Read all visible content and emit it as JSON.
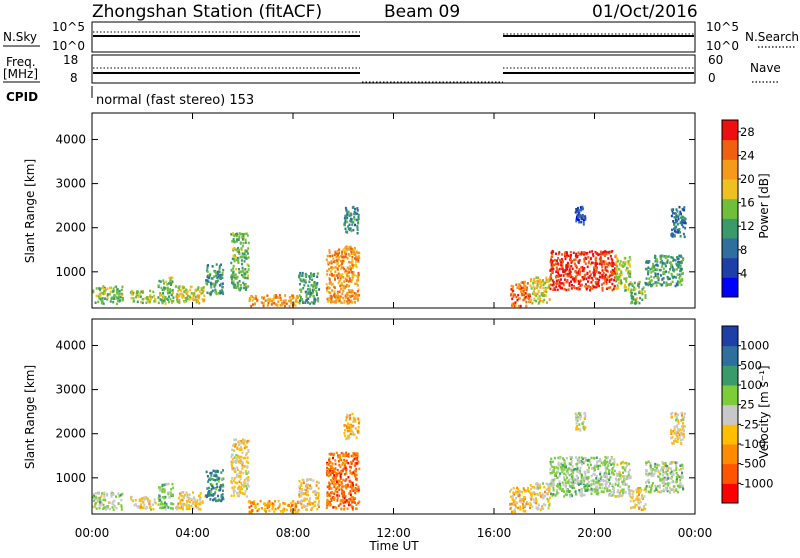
{
  "header": {
    "title": "Zhongshan Station (fitACF)",
    "beam": "Beam 09",
    "date": "01/Oct/2016"
  },
  "timeseries": {
    "nsky_label": "N.Sky",
    "nsearch_label": "N.Search",
    "nsky_ticks": [
      "10^5",
      "10^0"
    ],
    "freq_label": "Freq.",
    "freq_unit": "[MHz]",
    "freq_ticks": [
      "18",
      "8"
    ],
    "nave_label": "Nave",
    "nave_ticks": [
      "60",
      "0"
    ],
    "cpid_label": "CPID",
    "cpid_text": "normal (fast stereo) 153"
  },
  "colors": {
    "power_scale": [
      "#0000ff",
      "#1f3fa8",
      "#2e6f9e",
      "#3a9a6a",
      "#6fbf3a",
      "#f0c020",
      "#f59a1a",
      "#f06010",
      "#ee1010"
    ],
    "velocity_scale": [
      "#ff0000",
      "#ff5500",
      "#ff8c00",
      "#ffbf00",
      "#c8c8c8",
      "#7ccd3a",
      "#3a9a6a",
      "#2e6f9e",
      "#1f3fa8"
    ]
  },
  "chart_data": [
    {
      "type": "heatmap",
      "name": "power",
      "ylabel": "Slant Range [km]",
      "xlabel": "Time UT",
      "x_ticks": [
        "00:00",
        "04:00",
        "08:00",
        "12:00",
        "16:00",
        "20:00",
        "00:00"
      ],
      "y_ticks": [
        "1000",
        "2000",
        "3000",
        "4000"
      ],
      "ylim": [
        180,
        4600
      ],
      "xlim_hours": [
        0,
        24
      ],
      "colorbar_label": "Power [dB]",
      "colorbar_ticks": [
        "4",
        "8",
        "12",
        "16",
        "20",
        "24",
        "28"
      ],
      "clim": [
        0,
        30
      ],
      "regions": [
        {
          "t": [
            0,
            1.2
          ],
          "r": [
            300,
            700
          ],
          "v": 14
        },
        {
          "t": [
            1.5,
            2.5
          ],
          "r": [
            300,
            600
          ],
          "v": 16
        },
        {
          "t": [
            2.6,
            3.2
          ],
          "r": [
            300,
            900
          ],
          "v": 14
        },
        {
          "t": [
            3.3,
            4.5
          ],
          "r": [
            300,
            700
          ],
          "v": 18
        },
        {
          "t": [
            4.5,
            5.2
          ],
          "r": [
            500,
            1200
          ],
          "v": 12
        },
        {
          "t": [
            5.5,
            6.2
          ],
          "r": [
            600,
            1900
          ],
          "v": 14
        },
        {
          "t": [
            6.2,
            8.2
          ],
          "r": [
            250,
            500
          ],
          "v": 22
        },
        {
          "t": [
            8.2,
            9.0
          ],
          "r": [
            300,
            1000
          ],
          "v": 12
        },
        {
          "t": [
            9.3,
            10.6
          ],
          "r": [
            300,
            1600
          ],
          "v": 22
        },
        {
          "t": [
            10.0,
            10.6
          ],
          "r": [
            1900,
            2500
          ],
          "v": 10
        },
        {
          "t": [
            16.6,
            17.4
          ],
          "r": [
            250,
            800
          ],
          "v": 24
        },
        {
          "t": [
            17.4,
            18.2
          ],
          "r": [
            300,
            900
          ],
          "v": 18
        },
        {
          "t": [
            18.2,
            20.8
          ],
          "r": [
            600,
            1500
          ],
          "v": 27
        },
        {
          "t": [
            20.8,
            21.4
          ],
          "r": [
            600,
            1400
          ],
          "v": 16
        },
        {
          "t": [
            21.4,
            22.0
          ],
          "r": [
            300,
            800
          ],
          "v": 14
        },
        {
          "t": [
            22.0,
            23.5
          ],
          "r": [
            700,
            1400
          ],
          "v": 12
        },
        {
          "t": [
            23.0,
            23.6
          ],
          "r": [
            1800,
            2500
          ],
          "v": 8
        },
        {
          "t": [
            19.2,
            19.6
          ],
          "r": [
            2100,
            2500
          ],
          "v": 6
        }
      ]
    },
    {
      "type": "heatmap",
      "name": "velocity",
      "ylabel": "Slant Range [km]",
      "xlabel": "Time UT",
      "x_ticks": [
        "00:00",
        "04:00",
        "08:00",
        "12:00",
        "16:00",
        "20:00",
        "00:00"
      ],
      "y_ticks": [
        "1000",
        "2000",
        "3000",
        "4000"
      ],
      "ylim": [
        180,
        4600
      ],
      "xlim_hours": [
        0,
        24
      ],
      "colorbar_label": "Velocity [m s⁻¹]",
      "colorbar_ticks": [
        "1000",
        "500",
        "100",
        "25",
        "-25",
        "-100",
        "-500",
        "-1000"
      ],
      "clim": [
        -1200,
        1200
      ],
      "regions": [
        {
          "t": [
            0,
            1.2
          ],
          "r": [
            300,
            700
          ],
          "v": 150
        },
        {
          "t": [
            1.5,
            2.5
          ],
          "r": [
            300,
            600
          ],
          "v": -150
        },
        {
          "t": [
            2.6,
            3.2
          ],
          "r": [
            300,
            900
          ],
          "v": 300
        },
        {
          "t": [
            3.3,
            4.5
          ],
          "r": [
            300,
            700
          ],
          "v": -200
        },
        {
          "t": [
            4.5,
            5.2
          ],
          "r": [
            500,
            1200
          ],
          "v": 600
        },
        {
          "t": [
            5.5,
            6.2
          ],
          "r": [
            600,
            1900
          ],
          "v": -150
        },
        {
          "t": [
            6.2,
            8.2
          ],
          "r": [
            250,
            500
          ],
          "v": -450
        },
        {
          "t": [
            8.2,
            9.0
          ],
          "r": [
            300,
            1000
          ],
          "v": -200
        },
        {
          "t": [
            9.3,
            10.6
          ],
          "r": [
            300,
            1600
          ],
          "v": -700
        },
        {
          "t": [
            10.0,
            10.6
          ],
          "r": [
            1900,
            2500
          ],
          "v": -300
        },
        {
          "t": [
            16.6,
            17.4
          ],
          "r": [
            250,
            800
          ],
          "v": -300
        },
        {
          "t": [
            17.4,
            18.2
          ],
          "r": [
            300,
            900
          ],
          "v": -150
        },
        {
          "t": [
            18.2,
            20.8
          ],
          "r": [
            600,
            1500
          ],
          "v": 200
        },
        {
          "t": [
            20.8,
            21.4
          ],
          "r": [
            600,
            1400
          ],
          "v": 80
        },
        {
          "t": [
            21.4,
            22.0
          ],
          "r": [
            300,
            800
          ],
          "v": -150
        },
        {
          "t": [
            22.0,
            23.5
          ],
          "r": [
            700,
            1400
          ],
          "v": 150
        },
        {
          "t": [
            23.0,
            23.6
          ],
          "r": [
            1800,
            2500
          ],
          "v": -150
        },
        {
          "t": [
            19.2,
            19.6
          ],
          "r": [
            2100,
            2500
          ],
          "v": 0
        }
      ]
    }
  ]
}
